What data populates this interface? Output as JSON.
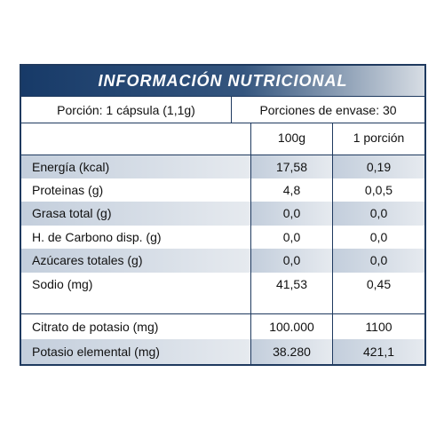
{
  "header": {
    "title": "INFORMACIÓN NUTRICIONAL"
  },
  "serving": {
    "portion": "Porción: 1 cápsula (1,1g)",
    "servings": "Porciones de envase: 30"
  },
  "table": {
    "columns": [
      "100g",
      "1 porción"
    ],
    "rows": [
      [
        "Energía (kcal)",
        "17,58",
        "0,19"
      ],
      [
        "Proteinas (g)",
        "4,8",
        "0,0,5"
      ],
      [
        "Grasa total (g)",
        "0,0",
        "0,0"
      ],
      [
        "H. de Carbono disp. (g)",
        "0,0",
        "0,0"
      ],
      [
        "Azúcares totales (g)",
        "0,0",
        "0,0"
      ],
      [
        "Sodio (mg)",
        "41,53",
        "0,45"
      ]
    ],
    "extra_rows": [
      [
        "Citrato de potasio (mg)",
        "100.000",
        "1100"
      ],
      [
        "Potasio elemental (mg)",
        "38.280",
        "421,1"
      ]
    ]
  }
}
